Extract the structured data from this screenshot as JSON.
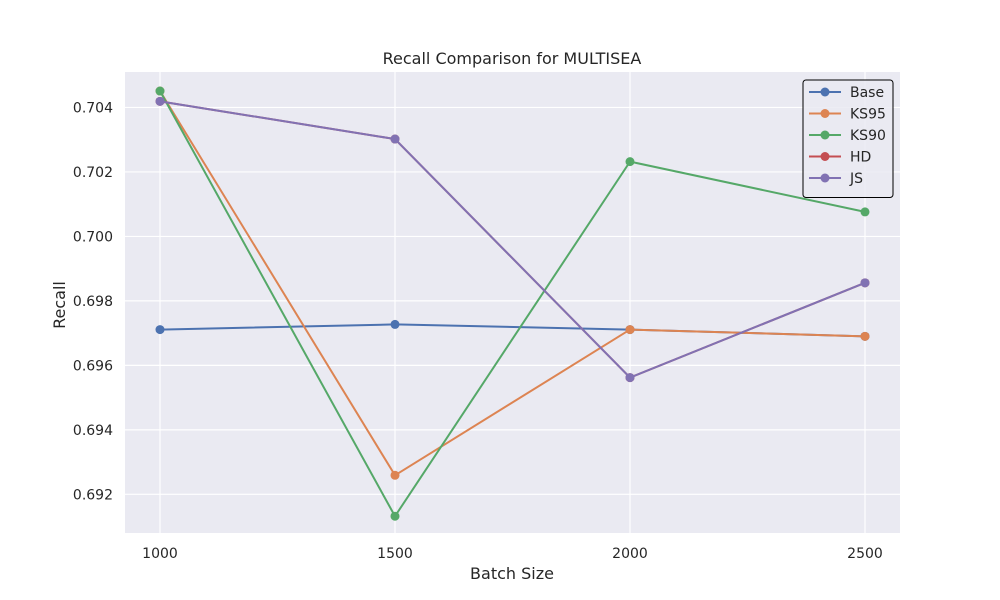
{
  "chart_data": {
    "type": "line",
    "title": "Recall Comparison for MULTISEA",
    "xlabel": "Batch Size",
    "ylabel": "Recall",
    "x": [
      1000,
      1500,
      2000,
      2500
    ],
    "x_tick_labels": [
      "1000",
      "1500",
      "2000",
      "2500"
    ],
    "ylim": [
      0.6908,
      0.7051
    ],
    "y_ticks": [
      0.692,
      0.694,
      0.696,
      0.698,
      0.7,
      0.702,
      0.704
    ],
    "y_tick_labels": [
      "0.692",
      "0.694",
      "0.696",
      "0.698",
      "0.700",
      "0.702",
      "0.704"
    ],
    "grid": true,
    "legend_position": "top-right",
    "series": [
      {
        "name": "Base",
        "color": "#4c72b0",
        "values": [
          0.69711,
          0.69727,
          0.69711,
          0.6969
        ]
      },
      {
        "name": "KS95",
        "color": "#dd8452",
        "values": [
          0.70451,
          0.69259,
          0.69711,
          0.6969
        ]
      },
      {
        "name": "KS90",
        "color": "#55a868",
        "values": [
          0.70451,
          0.69132,
          0.70232,
          0.70076
        ]
      },
      {
        "name": "HD",
        "color": "#c44e52",
        "values": [
          0.70419,
          0.70302,
          0.69562,
          0.69856
        ]
      },
      {
        "name": "JS",
        "color": "#8172b3",
        "values": [
          0.70419,
          0.70302,
          0.69562,
          0.69856
        ]
      }
    ]
  }
}
